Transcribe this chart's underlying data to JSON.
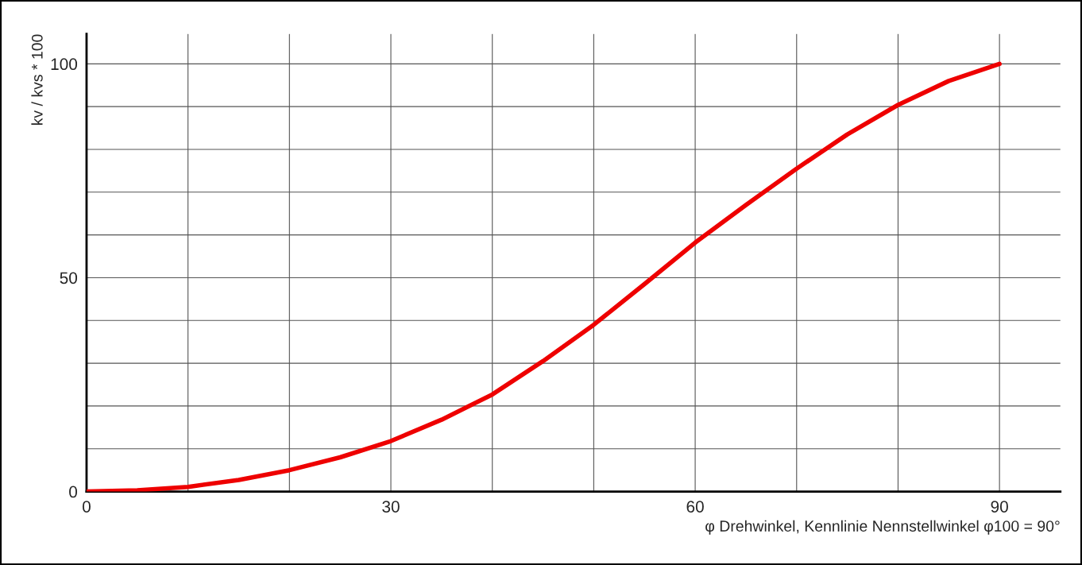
{
  "chart_data": {
    "type": "line",
    "xlabel": "φ Drehwinkel, Kennlinie Nennstellwinkel φ100 = 90°",
    "ylabel": "kv / kvs * 100",
    "x": [
      0,
      5,
      10,
      15,
      20,
      25,
      30,
      35,
      40,
      45,
      50,
      55,
      60,
      65,
      70,
      75,
      80,
      85,
      90
    ],
    "series": [
      {
        "color": "#ee0000",
        "values": [
          0,
          0.3,
          1.1,
          2.7,
          5,
          8,
          11.8,
          16.8,
          22.7,
          30.5,
          39,
          48.5,
          58.2,
          67,
          75.5,
          83.5,
          90.4,
          96,
          100
        ]
      }
    ],
    "xlim": [
      0,
      96
    ],
    "ylim": [
      0,
      107
    ],
    "xticks": [
      0,
      {
        "value": 10,
        "label": null
      },
      {
        "value": 20,
        "label": null
      },
      30,
      {
        "value": 40,
        "label": null
      },
      {
        "value": 50,
        "label": null
      },
      60,
      {
        "value": 70,
        "label": null
      },
      {
        "value": 80,
        "label": null
      },
      90
    ],
    "yticks": [
      0,
      {
        "value": 10,
        "label": null
      },
      {
        "value": 20,
        "label": null
      },
      {
        "value": 30,
        "label": null
      },
      {
        "value": 40,
        "label": null
      },
      50,
      {
        "value": 60,
        "label": null
      },
      {
        "value": 70,
        "label": null
      },
      {
        "value": 80,
        "label": null
      },
      {
        "value": 90,
        "label": null
      },
      100
    ],
    "grid": true,
    "legend": false,
    "marker": "none",
    "line_style": "solid"
  }
}
